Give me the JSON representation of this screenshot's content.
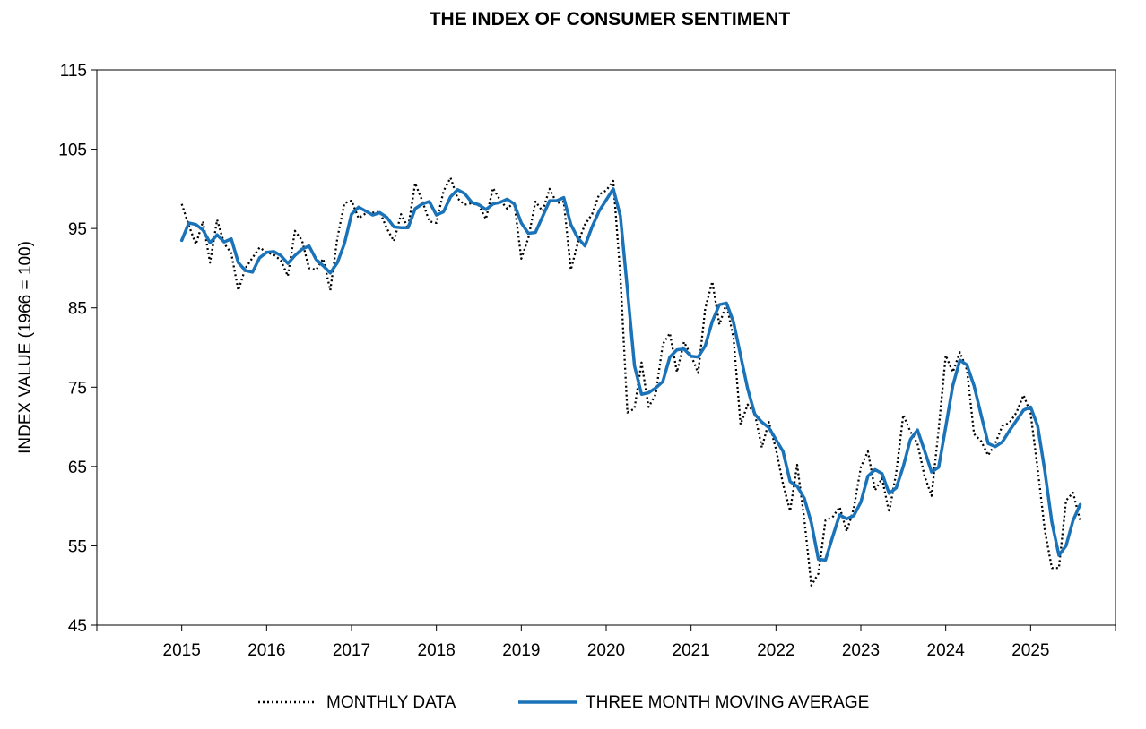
{
  "chart_data": {
    "type": "line",
    "title": "THE INDEX OF CONSUMER SENTIMENT",
    "xlabel": "",
    "ylabel": "INDEX VALUE (1966 = 100)",
    "ylim": [
      45,
      115
    ],
    "yticks": [
      45,
      55,
      65,
      75,
      85,
      95,
      105,
      115
    ],
    "xlim": [
      2014.0,
      2026.0
    ],
    "xticks": [
      "2015",
      "2016",
      "2017",
      "2018",
      "2019",
      "2020",
      "2021",
      "2022",
      "2023",
      "2024",
      "2025"
    ],
    "grid": false,
    "legend": "bottom",
    "series": [
      {
        "name": "MONTHLY DATA",
        "color": "#000000",
        "style": "dotted",
        "x_start": 2015.0,
        "x_step": 0.0833333,
        "values": [
          98.1,
          95.4,
          93.0,
          95.9,
          90.7,
          96.1,
          93.1,
          91.9,
          87.2,
          90.0,
          91.3,
          92.6,
          92.0,
          91.7,
          91.0,
          89.0,
          94.7,
          93.5,
          90.0,
          89.8,
          91.2,
          87.2,
          93.8,
          98.2,
          98.5,
          96.3,
          96.9,
          97.0,
          97.1,
          95.0,
          93.4,
          96.8,
          95.1,
          100.7,
          98.5,
          95.9,
          95.7,
          99.7,
          101.4,
          98.8,
          98.0,
          98.2,
          97.9,
          96.2,
          100.1,
          98.6,
          97.5,
          98.3,
          91.2,
          93.8,
          98.4,
          97.2,
          100.0,
          98.2,
          98.4,
          89.8,
          93.2,
          95.5,
          96.8,
          99.3,
          99.8,
          101.0,
          89.1,
          71.8,
          72.3,
          78.1,
          72.5,
          74.1,
          80.4,
          81.8,
          76.9,
          80.7,
          79.0,
          76.8,
          84.9,
          88.3,
          82.9,
          85.5,
          81.2,
          70.3,
          72.8,
          71.7,
          67.4,
          70.6,
          67.2,
          62.8,
          59.4,
          65.2,
          58.4,
          50.0,
          51.5,
          58.2,
          58.6,
          59.9,
          56.8,
          59.7,
          64.9,
          66.9,
          62.0,
          63.5,
          59.2,
          64.2,
          71.5,
          69.4,
          67.9,
          63.8,
          61.3,
          69.7,
          79.0,
          76.9,
          79.4,
          77.2,
          69.1,
          68.2,
          66.4,
          67.9,
          70.1,
          70.5,
          71.8,
          74.0,
          71.7,
          64.7,
          57.0,
          52.2,
          52.2,
          60.7,
          61.7,
          58.2
        ]
      },
      {
        "name": "THREE MONTH MOVING AVERAGE",
        "color": "#1a73b8",
        "style": "solid",
        "x_start": 2015.0,
        "x_step": 0.0833333,
        "values": [
          93.5,
          95.7,
          95.5,
          94.8,
          93.2,
          94.2,
          93.3,
          93.7,
          90.7,
          89.7,
          89.5,
          91.3,
          92.0,
          92.1,
          91.6,
          90.6,
          91.6,
          92.4,
          92.8,
          91.1,
          90.3,
          89.4,
          90.7,
          93.1,
          96.8,
          97.7,
          97.2,
          96.7,
          97.0,
          96.4,
          95.2,
          95.1,
          95.1,
          97.5,
          98.1,
          98.4,
          96.7,
          97.1,
          99.0,
          99.9,
          99.4,
          98.3,
          98.0,
          97.4,
          98.1,
          98.3,
          98.7,
          98.1,
          95.7,
          94.4,
          94.5,
          96.5,
          98.5,
          98.5,
          98.9,
          95.5,
          93.8,
          92.8,
          95.2,
          97.2,
          98.6,
          100.0,
          96.6,
          87.3,
          77.7,
          74.1,
          74.3,
          74.9,
          75.7,
          78.8,
          79.7,
          79.8,
          78.9,
          78.8,
          80.2,
          83.3,
          85.4,
          85.6,
          83.2,
          79.0,
          74.8,
          71.6,
          70.6,
          69.9,
          68.4,
          66.9,
          63.1,
          62.5,
          61.0,
          57.9,
          53.3,
          53.2,
          56.1,
          58.9,
          58.4,
          58.8,
          60.5,
          63.8,
          64.6,
          64.1,
          61.6,
          62.3,
          65.0,
          68.4,
          69.6,
          67.0,
          64.3,
          64.9,
          70.0,
          75.2,
          78.4,
          77.8,
          75.2,
          71.5,
          67.9,
          67.5,
          68.1,
          69.5,
          70.8,
          72.1,
          72.5,
          70.1,
          64.5,
          58.0,
          53.8,
          55.0,
          58.2,
          60.2
        ]
      }
    ]
  }
}
